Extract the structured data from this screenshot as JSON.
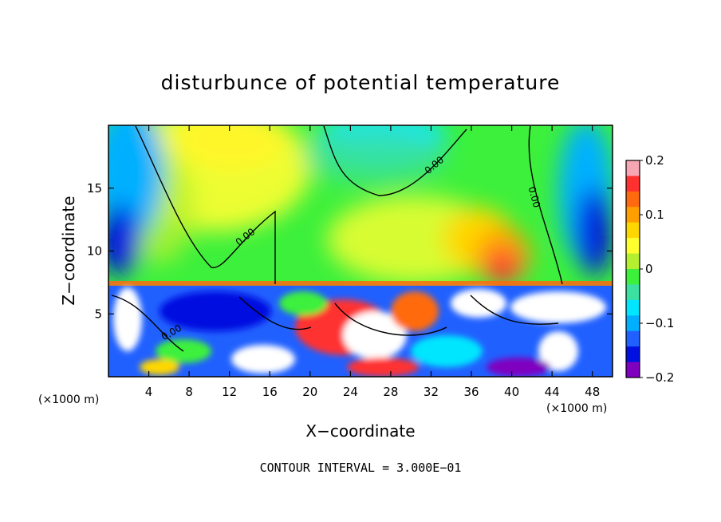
{
  "chart_data": {
    "type": "heatmap",
    "title": "disturbunce of potential temperature",
    "xlabel": "X−coordinate",
    "ylabel": "Z−coordinate",
    "x_unit": "(×1000 m)",
    "z_unit": "(×1000 m)",
    "xlim": [
      0,
      50
    ],
    "ylim": [
      0,
      20
    ],
    "x_ticks": [
      4,
      8,
      12,
      16,
      20,
      24,
      28,
      32,
      36,
      40,
      44,
      48
    ],
    "y_ticks": [
      5,
      10,
      15
    ],
    "colorbar": {
      "min": -0.2,
      "max": 0.2,
      "ticks": [
        0.2,
        0.1,
        0,
        -0.1,
        -0.2
      ],
      "tick_labels": [
        "0.2",
        "0.1",
        "0",
        "−0.1",
        "−0.2"
      ],
      "colors": [
        "#f7a6b4",
        "#ff3030",
        "#ff6a10",
        "#ffa000",
        "#ffd700",
        "#ffff30",
        "#b4f030",
        "#3cf03c",
        "#3ce0a0",
        "#00e6ff",
        "#00b0ff",
        "#2060ff",
        "#0010e0",
        "#8000c0"
      ]
    },
    "contour_labels": [
      "0.00",
      "0.00",
      "0.00",
      "0.00"
    ],
    "contour_interval_text": "CONTOUR INTERVAL = 3.000E−01",
    "grid": false
  }
}
